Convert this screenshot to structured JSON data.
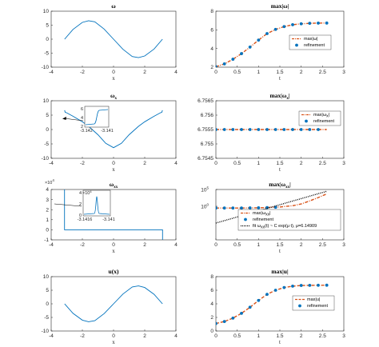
{
  "chart_data": [
    {
      "type": "line",
      "title": "ω",
      "xlabel": "x",
      "xlim": [
        -4,
        4
      ],
      "ylim": [
        -10,
        10
      ],
      "xticks": [
        -4,
        -2,
        0,
        2,
        4
      ],
      "yticks": [
        -10,
        -5,
        0,
        5,
        10
      ],
      "series": [
        {
          "color": "#0072BD",
          "x": [
            -3.14,
            -2.6,
            -2.0,
            -1.6,
            -1.2,
            -0.6,
            0,
            0.6,
            1.2,
            1.6,
            2.0,
            2.6,
            3.14
          ],
          "y": [
            0,
            3.5,
            6.0,
            6.6,
            6.2,
            3.6,
            0,
            -3.6,
            -6.2,
            -6.6,
            -6.0,
            -3.5,
            0
          ]
        }
      ]
    },
    {
      "type": "line",
      "title": "max|ω|",
      "xlabel": "t",
      "xlim": [
        0,
        3
      ],
      "ylim": [
        2,
        8
      ],
      "xticks": [
        0,
        0.5,
        1,
        1.5,
        2,
        2.5,
        3
      ],
      "yticks": [
        2,
        4,
        6,
        8
      ],
      "legend": {
        "position": "right",
        "entries": [
          "max|ω|",
          "refinement"
        ]
      },
      "series": [
        {
          "color": "#D95319",
          "style": "dashdot",
          "x": [
            0,
            0.2,
            0.4,
            0.6,
            0.8,
            1.0,
            1.2,
            1.4,
            1.6,
            1.8,
            2.0,
            2.2,
            2.4,
            2.6
          ],
          "y": [
            2.05,
            2.35,
            2.85,
            3.45,
            4.15,
            4.9,
            5.6,
            6.05,
            6.35,
            6.55,
            6.65,
            6.7,
            6.72,
            6.73
          ]
        },
        {
          "color": "#0072BD",
          "style": "markers",
          "x": [
            0,
            0.2,
            0.4,
            0.6,
            0.8,
            1.0,
            1.2,
            1.4,
            1.6,
            1.8,
            2.0,
            2.2,
            2.4,
            2.6
          ],
          "y": [
            2.05,
            2.35,
            2.85,
            3.45,
            4.15,
            4.9,
            5.6,
            6.05,
            6.35,
            6.55,
            6.65,
            6.7,
            6.72,
            6.73
          ]
        }
      ]
    },
    {
      "type": "line",
      "title": "ωx",
      "xlabel": "x",
      "xlim": [
        -4,
        4
      ],
      "ylim": [
        -10,
        10
      ],
      "xticks": [
        -4,
        -2,
        0,
        2,
        4
      ],
      "yticks": [
        -10,
        -5,
        0,
        5,
        10
      ],
      "inset": {
        "xticks": [
          "-3.142",
          "-3.141"
        ],
        "yticks": [
          2,
          4,
          6
        ]
      },
      "series": [
        {
          "color": "#0072BD",
          "x": [
            -3.14,
            -3.1,
            -3.0,
            -2.6,
            -2.0,
            -1.6,
            -1.0,
            -0.5,
            0,
            0.5,
            1.0,
            1.6,
            2.0,
            2.6,
            3.0,
            3.1,
            3.14
          ],
          "y": [
            6.7,
            6.0,
            5.8,
            4.6,
            2.7,
            1.1,
            -1.8,
            -4.8,
            -6.3,
            -4.8,
            -1.8,
            1.1,
            2.7,
            4.6,
            5.8,
            6.0,
            6.7
          ]
        }
      ]
    },
    {
      "type": "line",
      "title": "max|ωx|",
      "xlabel": "t",
      "xlim": [
        0,
        3
      ],
      "ylim": [
        6.7545,
        6.7565
      ],
      "xticks": [
        0,
        0.5,
        1,
        1.5,
        2,
        2.5,
        3
      ],
      "yticks": [
        "6.7545",
        "6.755",
        "6.7555",
        "6.756",
        "6.7565"
      ],
      "legend": {
        "position": "top-right",
        "entries": [
          "max|ωx|",
          "refinement"
        ]
      },
      "series": [
        {
          "color": "#D95319",
          "style": "dashdot",
          "x": [
            0,
            2.6
          ],
          "y": [
            6.7555,
            6.7555
          ]
        },
        {
          "color": "#0072BD",
          "style": "markers",
          "x": [
            0,
            0.2,
            0.4,
            0.6,
            0.8,
            1.0,
            1.2,
            1.4,
            1.6,
            1.8,
            2.0,
            2.2,
            2.4
          ],
          "y": [
            6.7555,
            6.7555,
            6.7555,
            6.7555,
            6.7555,
            6.7555,
            6.7555,
            6.7555,
            6.7555,
            6.7555,
            6.7555,
            6.7555,
            6.7555
          ]
        }
      ]
    },
    {
      "type": "line",
      "title": "ωxx",
      "xlabel": "x",
      "xlim": [
        -4,
        4
      ],
      "ylim": [
        -1,
        4
      ],
      "y_multiplier": "×10",
      "y_multiplier_exp": "4",
      "xticks": [
        -4,
        -2,
        0,
        2,
        4
      ],
      "yticks": [
        -1,
        0,
        1,
        2,
        3,
        4
      ],
      "inset": {
        "multiplier": "×10",
        "multiplier_exp": "4",
        "xticks": [
          "-3.1416",
          "-3.141"
        ],
        "yticks": [
          0,
          2,
          4
        ]
      },
      "series": [
        {
          "color": "#0072BD",
          "x": [
            -3.1416,
            -3.1416,
            3.1416,
            3.1416
          ],
          "y": [
            4,
            0,
            0,
            -1
          ]
        }
      ]
    },
    {
      "type": "line",
      "title": "max|ωxx|",
      "xlabel": "t",
      "xlim": [
        0,
        3
      ],
      "ylog": true,
      "ylim": [
        1e-10,
        100000.0
      ],
      "xticks": [
        0,
        0.5,
        1,
        1.5,
        2,
        2.5,
        3
      ],
      "yticks": [
        "10",
        "10"
      ],
      "ytick_exps": [
        "0",
        "5"
      ],
      "legend": {
        "position": "bottom-right",
        "entries": [
          "max|ωxx|",
          "refinement",
          "fit ωxx(t) ~ C exp(μ t), μ=6.14909"
        ]
      },
      "series": [
        {
          "color": "#D95319",
          "style": "dashdot",
          "x": [
            0,
            0.5,
            1.0,
            1.5,
            1.8,
            2.0,
            2.2,
            2.4,
            2.6
          ],
          "y": [
            0.3,
            0.3,
            0.35,
            0.6,
            1.5,
            5,
            40,
            400,
            5000
          ]
        },
        {
          "color": "#0072BD",
          "style": "markers",
          "x": [
            0,
            0.2,
            0.4,
            0.6,
            0.8,
            1.0,
            1.2,
            1.4
          ],
          "y": [
            0.3,
            0.3,
            0.3,
            0.3,
            0.32,
            0.35,
            0.4,
            0.5
          ]
        },
        {
          "color": "#000000",
          "style": "dotted",
          "x": [
            0,
            2.6
          ],
          "y": [
            1e-05,
            30000
          ]
        }
      ]
    },
    {
      "type": "line",
      "title": "u(x)",
      "xlabel": "x",
      "xlim": [
        -4,
        4
      ],
      "ylim": [
        -10,
        10
      ],
      "xticks": [
        -4,
        -2,
        0,
        2,
        4
      ],
      "yticks": [
        -10,
        -5,
        0,
        5,
        10
      ],
      "series": [
        {
          "color": "#0072BD",
          "x": [
            -3.14,
            -2.6,
            -2.0,
            -1.6,
            -1.2,
            -0.6,
            0,
            0.6,
            1.2,
            1.6,
            2.0,
            2.6,
            3.14
          ],
          "y": [
            0,
            -3.5,
            -6.0,
            -6.6,
            -6.2,
            -3.6,
            0,
            3.6,
            6.2,
            6.6,
            6.0,
            3.5,
            0
          ]
        }
      ]
    },
    {
      "type": "line",
      "title": "max|u|",
      "xlabel": "t",
      "xlim": [
        0,
        3
      ],
      "ylim": [
        0,
        8
      ],
      "xticks": [
        0,
        0.5,
        1,
        1.5,
        2,
        2.5,
        3
      ],
      "yticks": [
        0,
        2,
        4,
        6,
        8
      ],
      "legend": {
        "position": "right",
        "entries": [
          "max|u|",
          "refinement"
        ]
      },
      "series": [
        {
          "color": "#D95319",
          "style": "dashed",
          "x": [
            0,
            0.2,
            0.4,
            0.6,
            0.8,
            1.0,
            1.2,
            1.4,
            1.6,
            1.8,
            2.0,
            2.2,
            2.4,
            2.6
          ],
          "y": [
            1.1,
            1.4,
            1.9,
            2.6,
            3.5,
            4.5,
            5.4,
            6.0,
            6.4,
            6.6,
            6.7,
            6.72,
            6.73,
            6.74
          ]
        },
        {
          "color": "#0072BD",
          "style": "markers",
          "x": [
            0,
            0.2,
            0.4,
            0.6,
            0.8,
            1.0,
            1.2,
            1.4,
            1.6,
            1.8,
            2.0,
            2.2,
            2.4,
            2.6
          ],
          "y": [
            1.1,
            1.4,
            1.9,
            2.6,
            3.5,
            4.5,
            5.4,
            6.0,
            6.4,
            6.6,
            6.7,
            6.72,
            6.73,
            6.74
          ]
        }
      ]
    }
  ]
}
